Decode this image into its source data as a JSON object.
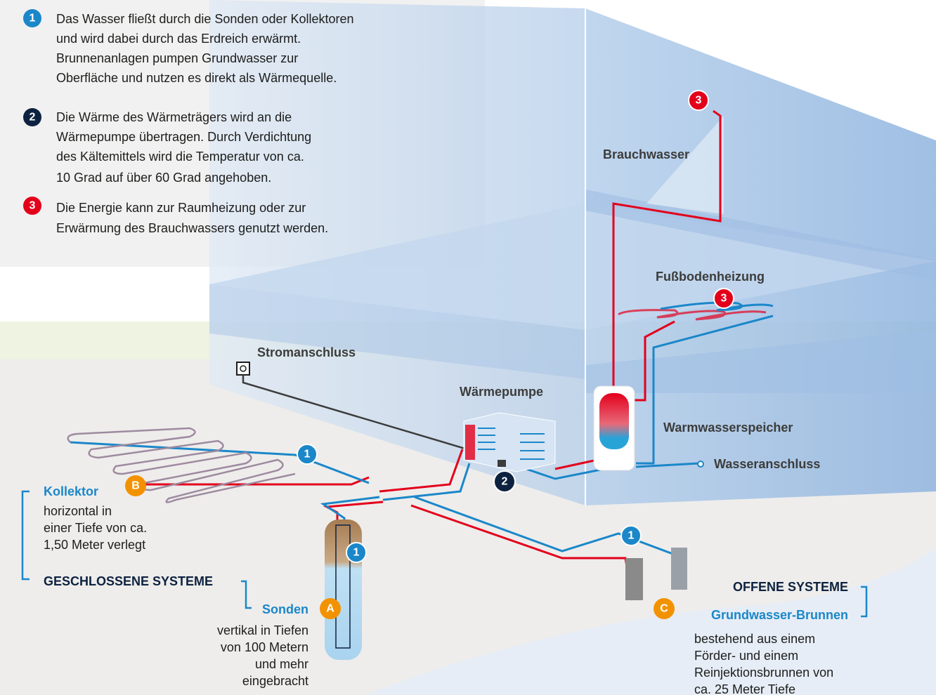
{
  "legend": [
    {
      "marker": "1",
      "lines": [
        "Das Wasser fließt durch die Sonden oder Kollektoren",
        "und wird dabei durch das Erdreich erwärmt.",
        "Brunnenanlagen pumpen Grundwasser zur",
        "Oberfläche und nutzen es direkt als Wärmequelle."
      ]
    },
    {
      "marker": "2",
      "lines": [
        "Die Wärme des Wärmeträgers wird an die",
        "Wärmepumpe übertragen. Durch Verdichtung",
        "des Kältemittels wird die Temperatur von ca.",
        "10 Grad auf über 60 Grad angehoben."
      ]
    },
    {
      "marker": "3",
      "lines": [
        "Die Energie kann zur Raumheizung oder zur",
        "Erwärmung des Brauchwassers genutzt werden."
      ]
    }
  ],
  "labels": {
    "brauchwasser": "Brauchwasser",
    "fussbodenheizung": "Fußbodenheizung",
    "stromanschluss": "Stromanschluss",
    "waermepumpe": "Wärmepumpe",
    "warmwasserspeicher": "Warmwasserspeicher",
    "wasseranschluss": "Wasseranschluss"
  },
  "closed_systems": {
    "title": "GESCHLOSSENE SYSTEME",
    "kollektor": {
      "marker": "B",
      "title": "Kollektor",
      "lines": [
        "horizontal in",
        "einer Tiefe von ca.",
        "1,50 Meter verlegt"
      ]
    },
    "sonden": {
      "marker": "A",
      "title": "Sonden",
      "lines": [
        "vertikal in Tiefen",
        "von 100 Metern",
        "und mehr",
        "eingebracht"
      ]
    }
  },
  "open_systems": {
    "title": "OFFENE SYSTEME",
    "brunnen": {
      "marker": "C",
      "title": "Grundwasser-Brunnen",
      "lines": [
        "bestehend aus einem",
        "Förder- und einem",
        "Reinjektionsbrunnen von",
        "ca. 25 Meter Tiefe"
      ]
    }
  },
  "diagram_markers": [
    "3",
    "3",
    "1",
    "2",
    "1",
    "1"
  ]
}
